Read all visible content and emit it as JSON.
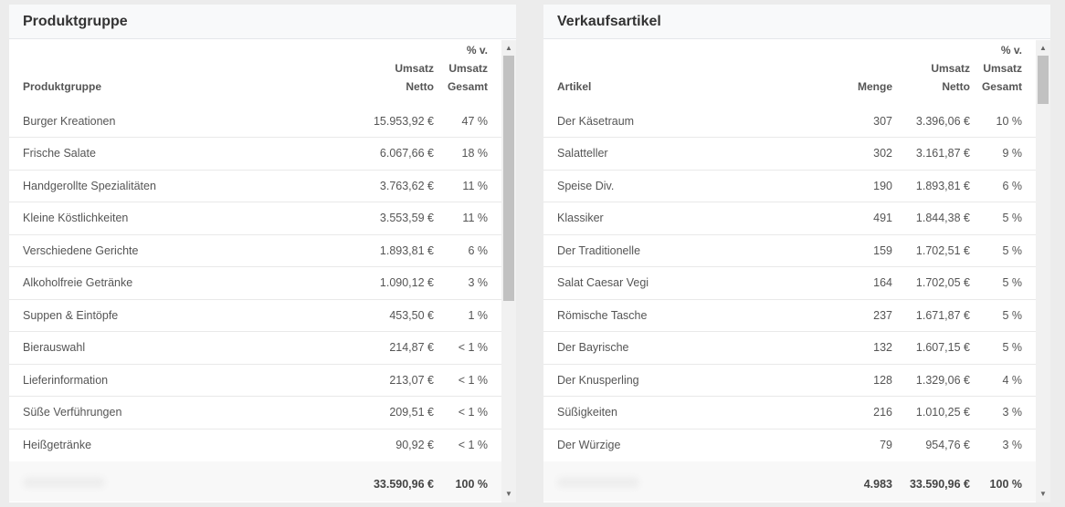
{
  "left_panel": {
    "title": "Produktgruppe",
    "headers": {
      "name": "Produktgruppe",
      "netto": "Umsatz\nNetto",
      "percent": "% v.\nUmsatz\nGesamt"
    },
    "rows": [
      {
        "name": "Burger Kreationen",
        "netto": "15.953,92 €",
        "percent": "47 %"
      },
      {
        "name": "Frische Salate",
        "netto": "6.067,66 €",
        "percent": "18 %"
      },
      {
        "name": "Handgerollte Spezialitäten",
        "netto": "3.763,62 €",
        "percent": "11 %"
      },
      {
        "name": "Kleine Köstlichkeiten",
        "netto": "3.553,59 €",
        "percent": "11 %"
      },
      {
        "name": "Verschiedene Gerichte",
        "netto": "1.893,81 €",
        "percent": "6 %"
      },
      {
        "name": "Alkoholfreie Getränke",
        "netto": "1.090,12 €",
        "percent": "3 %"
      },
      {
        "name": "Suppen & Eintöpfe",
        "netto": "453,50 €",
        "percent": "1 %"
      },
      {
        "name": "Bierauswahl",
        "netto": "214,87 €",
        "percent": "< 1 %"
      },
      {
        "name": "Lieferinformation",
        "netto": "213,07 €",
        "percent": "< 1 %"
      },
      {
        "name": "Süße Verführungen",
        "netto": "209,51 €",
        "percent": "< 1 %"
      },
      {
        "name": "Heißgetränke",
        "netto": "90,92 €",
        "percent": "< 1 %"
      }
    ],
    "footer": {
      "netto": "33.590,96 €",
      "percent": "100 %"
    }
  },
  "right_panel": {
    "title": "Verkaufsartikel",
    "headers": {
      "name": "Artikel",
      "menge": "Menge",
      "netto": "Umsatz\nNetto",
      "percent": "% v.\nUmsatz\nGesamt"
    },
    "rows": [
      {
        "name": "Der Käsetraum",
        "menge": "307",
        "netto": "3.396,06 €",
        "percent": "10 %"
      },
      {
        "name": "Salatteller",
        "menge": "302",
        "netto": "3.161,87 €",
        "percent": "9 %"
      },
      {
        "name": "Speise Div.",
        "menge": "190",
        "netto": "1.893,81 €",
        "percent": "6 %"
      },
      {
        "name": "Klassiker",
        "menge": "491",
        "netto": "1.844,38 €",
        "percent": "5 %"
      },
      {
        "name": "Der Traditionelle",
        "menge": "159",
        "netto": "1.702,51 €",
        "percent": "5 %"
      },
      {
        "name": "Salat Caesar Vegi",
        "menge": "164",
        "netto": "1.702,05 €",
        "percent": "5 %"
      },
      {
        "name": "Römische Tasche",
        "menge": "237",
        "netto": "1.671,87 €",
        "percent": "5 %"
      },
      {
        "name": "Der Bayrische",
        "menge": "132",
        "netto": "1.607,15 €",
        "percent": "5 %"
      },
      {
        "name": "Der Knusperling",
        "menge": "128",
        "netto": "1.329,06 €",
        "percent": "4 %"
      },
      {
        "name": "Süßigkeiten",
        "menge": "216",
        "netto": "1.010,25 €",
        "percent": "3 %"
      },
      {
        "name": "Der Würzige",
        "menge": "79",
        "netto": "954,76 €",
        "percent": "3 %"
      }
    ],
    "footer": {
      "menge": "4.983",
      "netto": "33.590,96 €",
      "percent": "100 %"
    }
  },
  "icons": {
    "scroll_up": "▲",
    "scroll_down": "▼"
  }
}
